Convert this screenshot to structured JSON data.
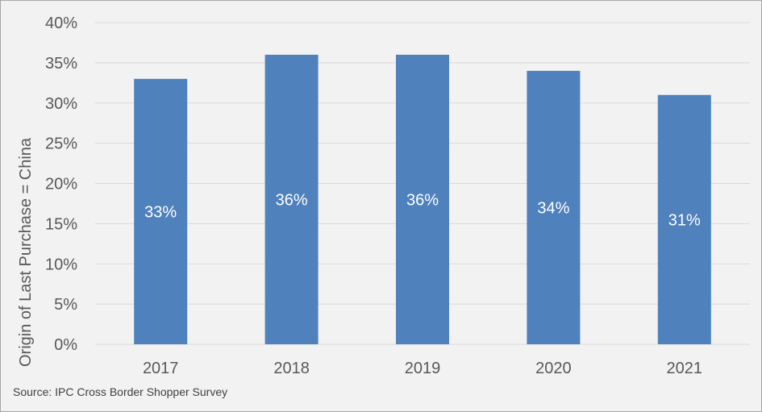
{
  "chart_data": {
    "type": "bar",
    "categories": [
      "2017",
      "2018",
      "2019",
      "2020",
      "2021"
    ],
    "values": [
      33,
      36,
      36,
      34,
      31
    ],
    "data_labels": [
      "33%",
      "36%",
      "36%",
      "34%",
      "31%"
    ],
    "ylabel": "Origin of Last Purchase = China",
    "xlabel": "",
    "ylim": [
      0,
      40
    ],
    "yticks": [
      0,
      5,
      10,
      15,
      20,
      25,
      30,
      35,
      40
    ],
    "ytick_labels": [
      "0%",
      "5%",
      "10%",
      "15%",
      "20%",
      "25%",
      "30%",
      "35%",
      "40%"
    ],
    "grid": true,
    "bar_color": "#4f81bd",
    "grid_color": "#d9d9d9"
  },
  "source": "Source: IPC Cross Border Shopper Survey"
}
